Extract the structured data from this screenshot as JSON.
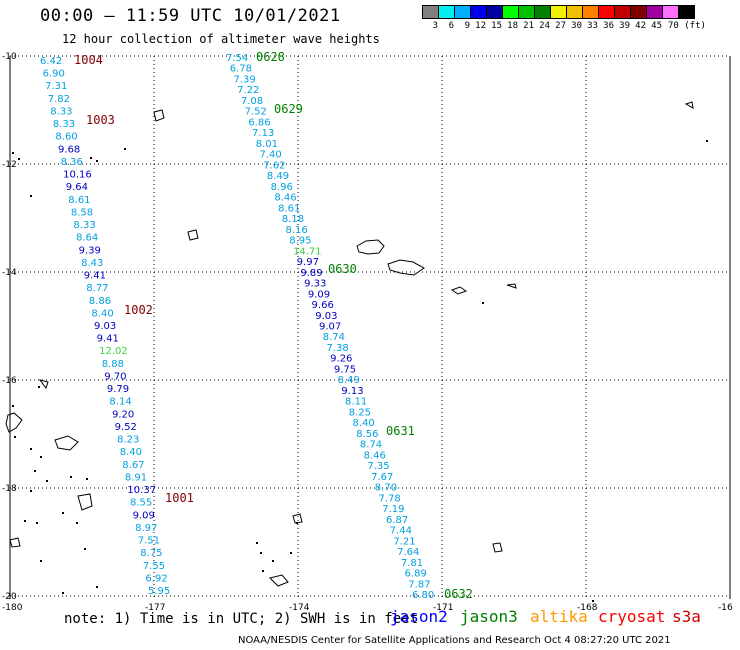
{
  "header": {
    "title": "00:00 – 11:59 UTC 10/01/2021",
    "subtitle": "12 hour collection of altimeter wave heights"
  },
  "legend": {
    "colors": [
      "#808080",
      "#00f0f0",
      "#00b0ff",
      "#0000f0",
      "#0000a0",
      "#00ff00",
      "#00c000",
      "#008000",
      "#f0f000",
      "#f0c000",
      "#ff8000",
      "#ff0000",
      "#c00000",
      "#800000",
      "#a000a0",
      "#ff70ff",
      "#000000"
    ],
    "labels": [
      "3",
      "6",
      "9",
      "12",
      "15",
      "18",
      "21",
      "24",
      "27",
      "30",
      "33",
      "36",
      "39",
      "42",
      "45",
      "70 (ft)"
    ]
  },
  "axes": {
    "lat_labels": [
      "-10",
      "-12",
      "-14",
      "-16",
      "-18",
      "-20"
    ],
    "lon_labels": [
      "-180",
      "-177",
      "-174",
      "-171",
      "-168",
      "-16"
    ]
  },
  "tracks": {
    "track1": [
      "6.42",
      "6.90",
      "7.31",
      "7.82",
      "8.33",
      "8.33",
      "8.60",
      "9.68",
      "8.36",
      "10.16",
      "9.64",
      "8.61",
      "8.58",
      "8.33",
      "8.64",
      "9.39",
      "8.43",
      "9.41",
      "8.77",
      "8.86",
      "8.40",
      "9.03",
      "9.41",
      "12.02",
      "8.88",
      "9.70",
      "9.79",
      "8.14",
      "9.20",
      "9.52",
      "8.23",
      "8.40",
      "8.67",
      "8.91",
      "10.37",
      "8.55",
      "9.09",
      "8.97",
      "7.51",
      "8.75",
      "7.55",
      "6.92",
      "5.95"
    ],
    "track2": [
      "7.54",
      "6.78",
      "7.39",
      "7.22",
      "7.08",
      "7.52",
      "6.86",
      "7.13",
      "8.01",
      "7.40",
      "7.62",
      "8.49",
      "8.96",
      "8.46",
      "8.61",
      "8.18",
      "8.16",
      "8.95",
      "14.71",
      "9.97",
      "9.89",
      "9.33",
      "9.09",
      "9.66",
      "9.03",
      "9.07",
      "8.74",
      "7.38",
      "9.26",
      "9.75",
      "8.49",
      "9.13",
      "8.11",
      "8.25",
      "8.40",
      "8.56",
      "8.74",
      "8.46",
      "7.35",
      "7.67",
      "8.70",
      "7.78",
      "7.19",
      "6.87",
      "7.44",
      "7.21",
      "7.64",
      "7.81",
      "6.89",
      "7.87",
      "6.80"
    ]
  },
  "time_labels": {
    "track1": [
      "1004",
      "1003",
      "1002",
      "1001"
    ],
    "track2": [
      "0628",
      "0629",
      "0630",
      "0631",
      "0632"
    ]
  },
  "footer": {
    "note": "note: 1) Time is in UTC; 2) SWH is in feet",
    "satellites": [
      {
        "name": "jason2",
        "color": "#0000ff"
      },
      {
        "name": "jason3",
        "color": "#008000"
      },
      {
        "name": "altika",
        "color": "#ff9900"
      },
      {
        "name": "cryosat",
        "color": "#ff0000"
      },
      {
        "name": "s3a",
        "color": "#cc0000"
      }
    ],
    "credit": "NOAA/NESDIS Center for Satellite Applications and Research   Oct  4 08:27:20 UTC 2021"
  }
}
